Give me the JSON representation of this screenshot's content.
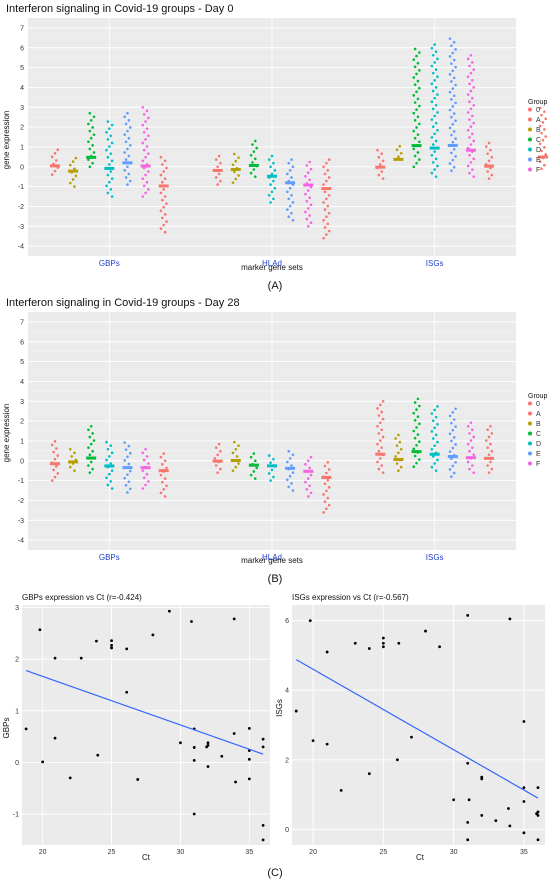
{
  "panel_labels": [
    "(A)",
    "(B)",
    "(C)"
  ],
  "colors": {
    "panel_bg": "#ebebeb",
    "grid": "#ffffff",
    "text": "#333333",
    "tick_blue": "#1f3fcc",
    "fit_line": "#3366ff",
    "point": "#000000",
    "groups": [
      "#f8766d",
      "#b79f00",
      "#00ba38",
      "#00bfc4",
      "#619cff",
      "#f564e3"
    ]
  },
  "chart_data": [
    {
      "id": "A",
      "type": "scatter",
      "subtype": "dot-strip",
      "title": "Interferon signaling in Covid-19 groups - Day 0",
      "xlabel": "marker gene sets",
      "ylabel": "gene expression",
      "categories": [
        "GBPs",
        "HLAd",
        "ISGs"
      ],
      "legend": {
        "title": "Group",
        "entries": [
          "0",
          "A",
          "B",
          "C",
          "D",
          "E",
          "F"
        ],
        "position": "right"
      },
      "ylim": [
        -4.5,
        7.5
      ],
      "yticks": [
        -4,
        -3,
        -2,
        -1,
        0,
        1,
        2,
        3,
        4,
        5,
        6,
        7
      ],
      "grid": true,
      "series": [
        {
          "name": "0",
          "values": [
            [
              -0.4,
              1.0
            ],
            [
              -0.9,
              0.6
            ],
            [
              -0.6,
              1.0
            ],
            [
              -0.1,
              3.0
            ]
          ]
        },
        {
          "name": "A",
          "values": [
            [
              -1.0,
              0.6
            ],
            [
              -0.8,
              0.7
            ],
            [
              0.5,
              1.2
            ]
          ]
        },
        {
          "name": "B",
          "values": [
            [
              0.0,
              2.7
            ],
            [
              -0.5,
              1.3
            ],
            [
              0.0,
              6.1
            ]
          ]
        },
        {
          "name": "C",
          "values": [
            [
              -1.5,
              2.3
            ],
            [
              -1.8,
              0.6
            ],
            [
              -0.5,
              6.3
            ]
          ]
        },
        {
          "name": "D",
          "values": [
            [
              -0.9,
              2.8
            ],
            [
              -2.7,
              0.4
            ],
            [
              -0.2,
              6.5
            ]
          ]
        },
        {
          "name": "E",
          "values": [
            [
              -1.5,
              3.0
            ],
            [
              -3.0,
              0.3
            ],
            [
              -0.5,
              5.7
            ]
          ]
        },
        {
          "name": "F",
          "values": [
            [
              -3.3,
              0.6
            ],
            [
              -3.6,
              0.4
            ],
            [
              -0.6,
              1.3
            ]
          ]
        }
      ]
    },
    {
      "id": "B",
      "type": "scatter",
      "subtype": "dot-strip",
      "title": "Interferon signaling in Covid-19 groups - Day 28",
      "xlabel": "marker gene sets",
      "ylabel": "gene expression",
      "categories": [
        "GBPs",
        "HLAd",
        "ISGs"
      ],
      "legend": {
        "title": "Group",
        "entries": [
          "0",
          "A",
          "B",
          "C",
          "D",
          "E",
          "F"
        ],
        "position": "right"
      },
      "ylim": [
        -4.5,
        7.5
      ],
      "yticks": [
        -4,
        -3,
        -2,
        -1,
        0,
        1,
        2,
        3,
        4,
        5,
        6,
        7
      ],
      "grid": true,
      "series": [
        {
          "name": "0",
          "values": [
            [
              -1.0,
              1.0
            ],
            [
              -0.6,
              1.0
            ],
            [
              -0.6,
              3.0
            ]
          ]
        },
        {
          "name": "A",
          "values": [
            [
              -0.5,
              0.6
            ],
            [
              -0.5,
              1.0
            ],
            [
              -0.5,
              1.3
            ]
          ]
        },
        {
          "name": "B",
          "values": [
            [
              -0.6,
              1.9
            ],
            [
              -0.9,
              0.4
            ],
            [
              -0.3,
              3.2
            ]
          ]
        },
        {
          "name": "C",
          "values": [
            [
              -1.4,
              1.1
            ],
            [
              -1.0,
              0.4
            ],
            [
              -0.5,
              2.8
            ]
          ]
        },
        {
          "name": "D",
          "values": [
            [
              -1.6,
              1.0
            ],
            [
              -1.5,
              0.6
            ],
            [
              -0.8,
              2.7
            ]
          ]
        },
        {
          "name": "E",
          "values": [
            [
              -1.4,
              0.6
            ],
            [
              -1.8,
              0.3
            ],
            [
              -0.6,
              2.0
            ]
          ]
        },
        {
          "name": "F",
          "values": [
            [
              -1.8,
              0.5
            ],
            [
              -2.6,
              0.0
            ],
            [
              -0.6,
              1.8
            ]
          ]
        }
      ]
    },
    {
      "id": "C1",
      "type": "scatter",
      "title": "GBPs expression vs Ct (r=-0.424)",
      "xlabel": "Ct",
      "ylabel": "GBPs",
      "xlim": [
        18.5,
        36.5
      ],
      "ylim": [
        -1.6,
        3.05
      ],
      "xticks": [
        20,
        25,
        30,
        35
      ],
      "yticks": [
        -1,
        0,
        1,
        2,
        3
      ],
      "grid": true,
      "points": [
        [
          18.8,
          0.65
        ],
        [
          19.8,
          2.57
        ],
        [
          20.0,
          0.01
        ],
        [
          20.9,
          2.02
        ],
        [
          20.9,
          0.47
        ],
        [
          22.0,
          -0.3
        ],
        [
          22.8,
          2.02
        ],
        [
          23.9,
          2.35
        ],
        [
          24.0,
          0.14
        ],
        [
          25.0,
          2.36
        ],
        [
          25.0,
          2.27
        ],
        [
          25.0,
          2.22
        ],
        [
          25.0,
          2.22
        ],
        [
          26.1,
          2.2
        ],
        [
          26.1,
          1.36
        ],
        [
          26.9,
          -0.33
        ],
        [
          28.0,
          2.47
        ],
        [
          29.2,
          2.93
        ],
        [
          30.0,
          0.38
        ],
        [
          30.8,
          2.73
        ],
        [
          31.0,
          0.65
        ],
        [
          31.0,
          0.29
        ],
        [
          31.0,
          0.04
        ],
        [
          31.0,
          -1.0
        ],
        [
          31.9,
          0.3
        ],
        [
          32.0,
          0.38
        ],
        [
          32.0,
          0.33
        ],
        [
          32.0,
          -0.08
        ],
        [
          33.0,
          0.12
        ],
        [
          33.9,
          0.56
        ],
        [
          33.9,
          2.78
        ],
        [
          34.0,
          -0.38
        ],
        [
          35.0,
          0.66
        ],
        [
          35.0,
          0.23
        ],
        [
          35.0,
          -0.32
        ],
        [
          35.0,
          0.06
        ],
        [
          36.0,
          0.45
        ],
        [
          36.0,
          0.3
        ],
        [
          36.0,
          -1.22
        ],
        [
          36.0,
          -1.5
        ]
      ],
      "fit": {
        "x": [
          18.8,
          36.0
        ],
        "y": [
          1.78,
          0.16
        ]
      }
    },
    {
      "id": "C2",
      "type": "scatter",
      "title": "ISGs expression vs Ct (r=-0.567)",
      "xlabel": "Ct",
      "ylabel": "ISGs",
      "xlim": [
        18.5,
        36.5
      ],
      "ylim": [
        -0.45,
        6.45
      ],
      "xticks": [
        20,
        25,
        30,
        35
      ],
      "yticks": [
        0,
        2,
        4,
        6
      ],
      "grid": true,
      "points": [
        [
          18.8,
          3.4
        ],
        [
          19.8,
          6.0
        ],
        [
          20.0,
          2.55
        ],
        [
          21.0,
          5.1
        ],
        [
          21.0,
          2.45
        ],
        [
          22.0,
          1.12
        ],
        [
          23.0,
          5.35
        ],
        [
          24.0,
          1.6
        ],
        [
          24.0,
          5.2
        ],
        [
          25.0,
          5.5
        ],
        [
          25.0,
          5.35
        ],
        [
          25.0,
          5.25
        ],
        [
          26.0,
          2.0
        ],
        [
          26.1,
          5.35
        ],
        [
          27.0,
          2.65
        ],
        [
          28.0,
          5.7
        ],
        [
          29.0,
          5.25
        ],
        [
          30.0,
          0.85
        ],
        [
          31.0,
          6.15
        ],
        [
          31.0,
          1.9
        ],
        [
          31.1,
          0.85
        ],
        [
          31.0,
          0.2
        ],
        [
          31.0,
          -0.3
        ],
        [
          32.0,
          1.5
        ],
        [
          32.0,
          1.45
        ],
        [
          32.0,
          0.4
        ],
        [
          33.0,
          0.25
        ],
        [
          33.9,
          0.6
        ],
        [
          34.0,
          6.05
        ],
        [
          34.0,
          0.1
        ],
        [
          35.0,
          3.1
        ],
        [
          35.0,
          1.2
        ],
        [
          35.0,
          0.8
        ],
        [
          35.0,
          -0.1
        ],
        [
          36.0,
          1.2
        ],
        [
          36.0,
          0.5
        ],
        [
          36.0,
          0.4
        ],
        [
          36.0,
          -0.3
        ],
        [
          35.9,
          0.45
        ]
      ],
      "fit": {
        "x": [
          18.8,
          36.0
        ],
        "y": [
          4.88,
          0.9
        ]
      }
    }
  ]
}
